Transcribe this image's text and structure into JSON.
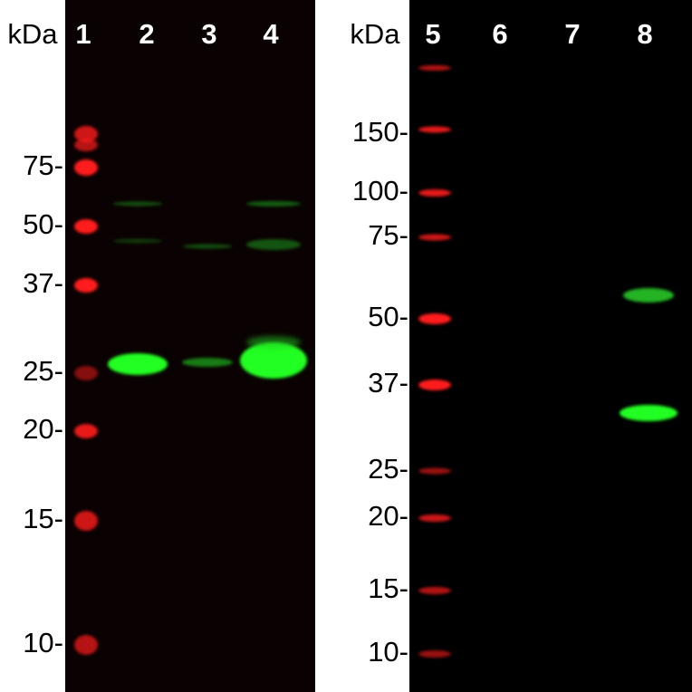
{
  "left_panel": {
    "unit": "kDa",
    "lanes": [
      "1",
      "2",
      "3",
      "4"
    ],
    "markers": [
      "75-",
      "50-",
      "37-",
      "25-",
      "20-",
      "15-",
      "10-"
    ]
  },
  "right_panel": {
    "unit": "kDa",
    "lanes": [
      "5",
      "6",
      "7",
      "8"
    ],
    "markers": [
      "150-",
      "100-",
      "75-",
      "50-",
      "37-",
      "25-",
      "20-",
      "15-",
      "10-"
    ]
  }
}
